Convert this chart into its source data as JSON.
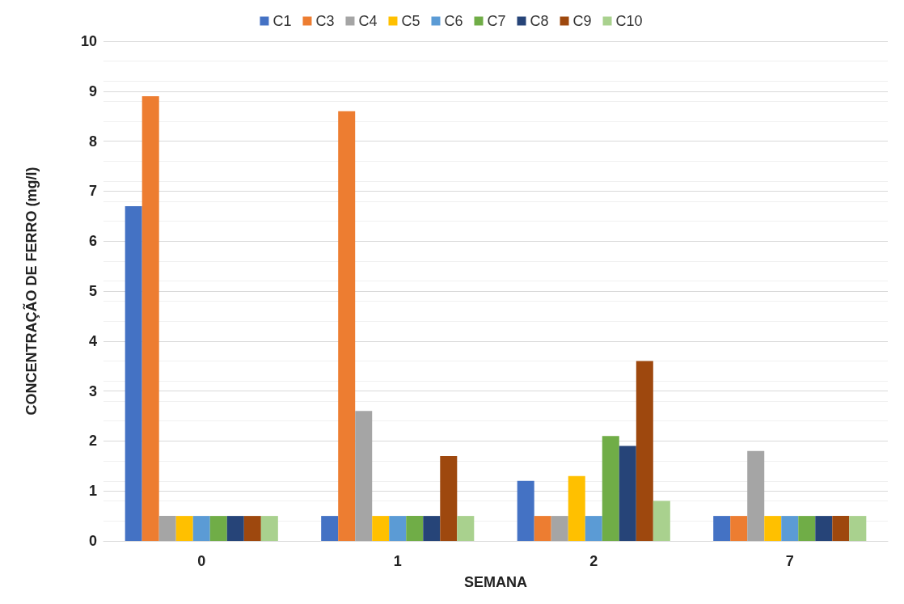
{
  "chart_data": {
    "type": "bar",
    "xlabel": "SEMANA",
    "ylabel": "CONCENTRAÇÃO DE FERRO (mg/l)",
    "categories": [
      "0",
      "1",
      "2",
      "7"
    ],
    "series": [
      {
        "name": "C1",
        "color": "#4472c4",
        "values": [
          6.7,
          0.5,
          1.2,
          0.5
        ]
      },
      {
        "name": "C3",
        "color": "#ed7d31",
        "values": [
          8.9,
          8.6,
          0.5,
          0.5
        ]
      },
      {
        "name": "C4",
        "color": "#a5a5a5",
        "values": [
          0.5,
          2.6,
          0.5,
          1.8
        ]
      },
      {
        "name": "C5",
        "color": "#ffc000",
        "values": [
          0.5,
          0.5,
          1.3,
          0.5
        ]
      },
      {
        "name": "C6",
        "color": "#5b9bd5",
        "values": [
          0.5,
          0.5,
          0.5,
          0.5
        ]
      },
      {
        "name": "C7",
        "color": "#70ad47",
        "values": [
          0.5,
          0.5,
          2.1,
          0.5
        ]
      },
      {
        "name": "C8",
        "color": "#264478",
        "values": [
          0.5,
          0.5,
          1.9,
          0.5
        ]
      },
      {
        "name": "C9",
        "color": "#9e480e",
        "values": [
          0.5,
          1.7,
          3.6,
          0.5
        ]
      },
      {
        "name": "C10",
        "color": "#a9d18e",
        "values": [
          0.5,
          0.5,
          0.8,
          0.5
        ]
      }
    ],
    "ylim": [
      0,
      10
    ],
    "yticks": [
      0,
      1,
      2,
      3,
      4,
      5,
      6,
      7,
      8,
      9,
      10
    ],
    "grid": "y",
    "legend": "top"
  }
}
